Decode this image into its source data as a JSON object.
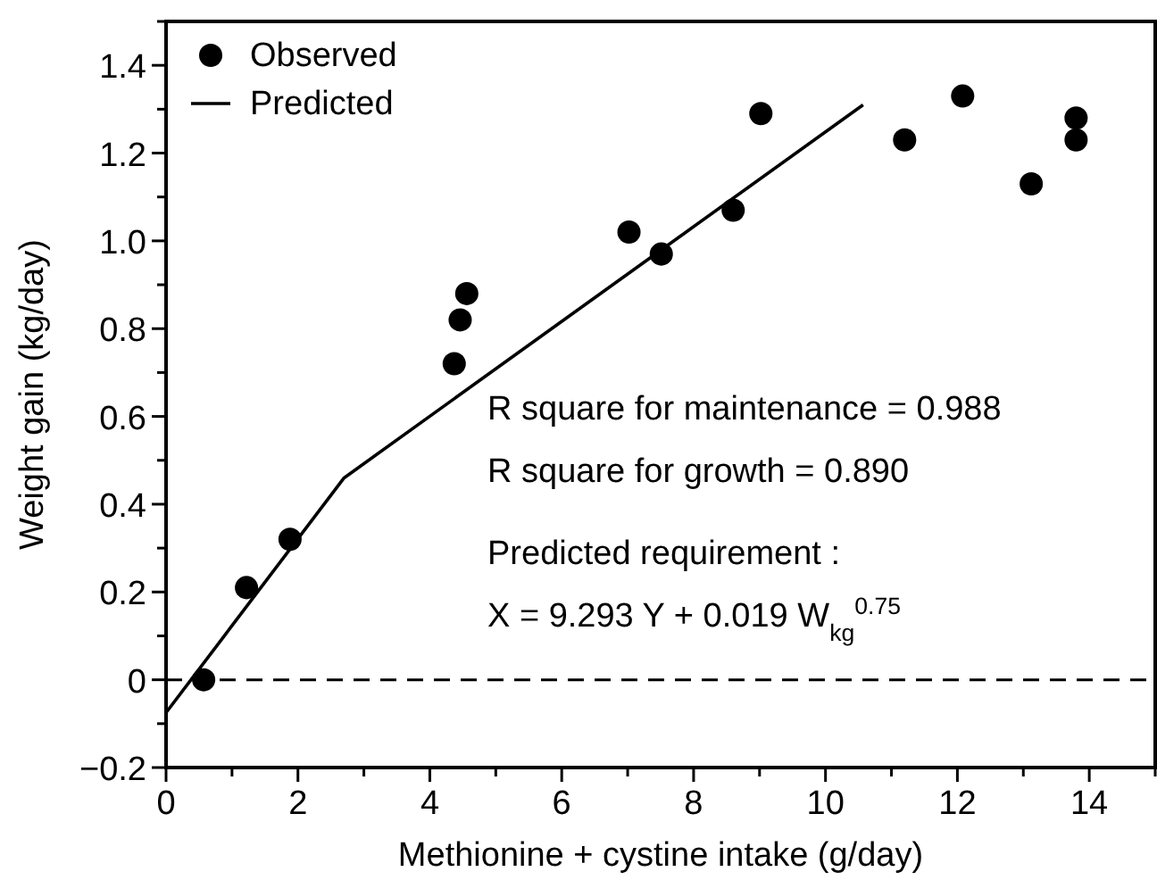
{
  "chart_data": {
    "type": "scatter",
    "xlabel": "Methionine + cystine intake (g/day)",
    "ylabel": "Weight gain (kg/day)",
    "xlim": [
      0,
      15
    ],
    "ylim": [
      -0.2,
      1.5
    ],
    "xticks": [
      0,
      {
        "value": 1,
        "label": null
      },
      2,
      {
        "value": 3,
        "label": null
      },
      4,
      {
        "value": 5,
        "label": null
      },
      6,
      {
        "value": 7,
        "label": null
      },
      8,
      {
        "value": 9,
        "label": null
      },
      10,
      {
        "value": 11,
        "label": null
      },
      12,
      {
        "value": 13,
        "label": null
      },
      14,
      {
        "value": 15,
        "label": null
      }
    ],
    "yticks": [
      {
        "value": -0.2,
        "label": "−0.2"
      },
      {
        "value": -0.1,
        "label": null
      },
      0,
      {
        "value": 0.1,
        "label": null
      },
      0.2,
      {
        "value": 0.3,
        "label": null
      },
      0.4,
      {
        "value": 0.5,
        "label": null
      },
      0.6,
      {
        "value": 0.7,
        "label": null
      },
      0.8,
      {
        "value": 0.9,
        "label": null
      },
      {
        "value": 1,
        "label": "1.0"
      },
      {
        "value": 1.1,
        "label": null
      },
      1.2,
      {
        "value": 1.3,
        "label": null
      },
      1.4,
      {
        "value": 1.5,
        "label": null
      }
    ],
    "series": [
      {
        "name": "Observed",
        "color": "#000000",
        "marker": "circle",
        "x": [
          0.57,
          1.22,
          1.88,
          4.37,
          4.46,
          4.56,
          7.02,
          7.51,
          8.6,
          9.02,
          11.2,
          12.08,
          13.12,
          13.8,
          13.8
        ],
        "values": [
          0,
          0.21,
          0.32,
          0.72,
          0.82,
          0.88,
          1.02,
          0.97,
          1.07,
          1.29,
          1.23,
          1.33,
          1.13,
          1.28,
          1.23
        ]
      },
      {
        "name": "Predicted",
        "type": "line",
        "color": "#000000",
        "line_style": "solid",
        "x": [
          0,
          2.7,
          10.57
        ],
        "values": [
          -0.075,
          0.46,
          1.31
        ]
      }
    ],
    "ref_lines": [
      {
        "axis": "y",
        "value": 0,
        "line_style": "dashed",
        "color": "#000000"
      }
    ],
    "annotations": [
      "R square for maintenance = 0.988",
      "R square for growth = 0.890",
      "Predicted requirement :",
      "X = 9.293 Y + 0.019 W$_{kg}$$^{0.75}$"
    ],
    "legend": "top left",
    "grid": false
  }
}
